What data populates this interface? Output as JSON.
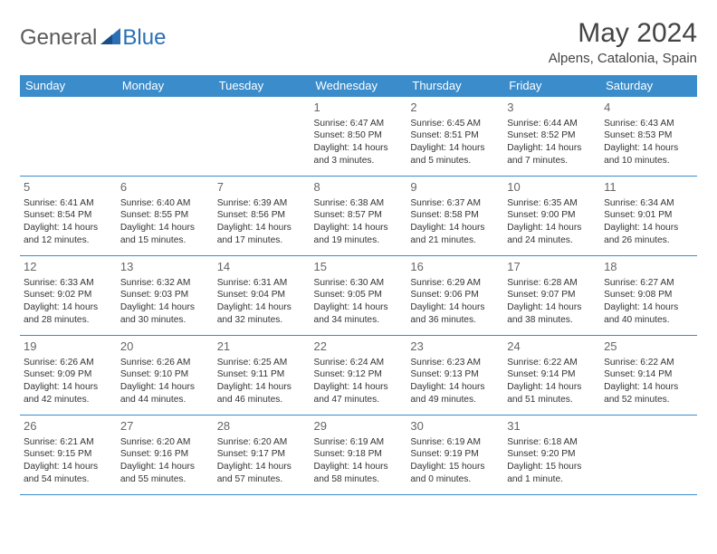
{
  "brand": {
    "part1": "General",
    "part2": "Blue"
  },
  "title": "May 2024",
  "location": "Alpens, Catalonia, Spain",
  "colors": {
    "header_bg": "#3b8ccb",
    "header_text": "#ffffff",
    "border": "#3b8ccb",
    "brand_blue": "#2b6fb5"
  },
  "day_headers": [
    "Sunday",
    "Monday",
    "Tuesday",
    "Wednesday",
    "Thursday",
    "Friday",
    "Saturday"
  ],
  "weeks": [
    [
      null,
      null,
      null,
      {
        "n": "1",
        "sr": "Sunrise: 6:47 AM",
        "ss": "Sunset: 8:50 PM",
        "d1": "Daylight: 14 hours",
        "d2": "and 3 minutes."
      },
      {
        "n": "2",
        "sr": "Sunrise: 6:45 AM",
        "ss": "Sunset: 8:51 PM",
        "d1": "Daylight: 14 hours",
        "d2": "and 5 minutes."
      },
      {
        "n": "3",
        "sr": "Sunrise: 6:44 AM",
        "ss": "Sunset: 8:52 PM",
        "d1": "Daylight: 14 hours",
        "d2": "and 7 minutes."
      },
      {
        "n": "4",
        "sr": "Sunrise: 6:43 AM",
        "ss": "Sunset: 8:53 PM",
        "d1": "Daylight: 14 hours",
        "d2": "and 10 minutes."
      }
    ],
    [
      {
        "n": "5",
        "sr": "Sunrise: 6:41 AM",
        "ss": "Sunset: 8:54 PM",
        "d1": "Daylight: 14 hours",
        "d2": "and 12 minutes."
      },
      {
        "n": "6",
        "sr": "Sunrise: 6:40 AM",
        "ss": "Sunset: 8:55 PM",
        "d1": "Daylight: 14 hours",
        "d2": "and 15 minutes."
      },
      {
        "n": "7",
        "sr": "Sunrise: 6:39 AM",
        "ss": "Sunset: 8:56 PM",
        "d1": "Daylight: 14 hours",
        "d2": "and 17 minutes."
      },
      {
        "n": "8",
        "sr": "Sunrise: 6:38 AM",
        "ss": "Sunset: 8:57 PM",
        "d1": "Daylight: 14 hours",
        "d2": "and 19 minutes."
      },
      {
        "n": "9",
        "sr": "Sunrise: 6:37 AM",
        "ss": "Sunset: 8:58 PM",
        "d1": "Daylight: 14 hours",
        "d2": "and 21 minutes."
      },
      {
        "n": "10",
        "sr": "Sunrise: 6:35 AM",
        "ss": "Sunset: 9:00 PM",
        "d1": "Daylight: 14 hours",
        "d2": "and 24 minutes."
      },
      {
        "n": "11",
        "sr": "Sunrise: 6:34 AM",
        "ss": "Sunset: 9:01 PM",
        "d1": "Daylight: 14 hours",
        "d2": "and 26 minutes."
      }
    ],
    [
      {
        "n": "12",
        "sr": "Sunrise: 6:33 AM",
        "ss": "Sunset: 9:02 PM",
        "d1": "Daylight: 14 hours",
        "d2": "and 28 minutes."
      },
      {
        "n": "13",
        "sr": "Sunrise: 6:32 AM",
        "ss": "Sunset: 9:03 PM",
        "d1": "Daylight: 14 hours",
        "d2": "and 30 minutes."
      },
      {
        "n": "14",
        "sr": "Sunrise: 6:31 AM",
        "ss": "Sunset: 9:04 PM",
        "d1": "Daylight: 14 hours",
        "d2": "and 32 minutes."
      },
      {
        "n": "15",
        "sr": "Sunrise: 6:30 AM",
        "ss": "Sunset: 9:05 PM",
        "d1": "Daylight: 14 hours",
        "d2": "and 34 minutes."
      },
      {
        "n": "16",
        "sr": "Sunrise: 6:29 AM",
        "ss": "Sunset: 9:06 PM",
        "d1": "Daylight: 14 hours",
        "d2": "and 36 minutes."
      },
      {
        "n": "17",
        "sr": "Sunrise: 6:28 AM",
        "ss": "Sunset: 9:07 PM",
        "d1": "Daylight: 14 hours",
        "d2": "and 38 minutes."
      },
      {
        "n": "18",
        "sr": "Sunrise: 6:27 AM",
        "ss": "Sunset: 9:08 PM",
        "d1": "Daylight: 14 hours",
        "d2": "and 40 minutes."
      }
    ],
    [
      {
        "n": "19",
        "sr": "Sunrise: 6:26 AM",
        "ss": "Sunset: 9:09 PM",
        "d1": "Daylight: 14 hours",
        "d2": "and 42 minutes."
      },
      {
        "n": "20",
        "sr": "Sunrise: 6:26 AM",
        "ss": "Sunset: 9:10 PM",
        "d1": "Daylight: 14 hours",
        "d2": "and 44 minutes."
      },
      {
        "n": "21",
        "sr": "Sunrise: 6:25 AM",
        "ss": "Sunset: 9:11 PM",
        "d1": "Daylight: 14 hours",
        "d2": "and 46 minutes."
      },
      {
        "n": "22",
        "sr": "Sunrise: 6:24 AM",
        "ss": "Sunset: 9:12 PM",
        "d1": "Daylight: 14 hours",
        "d2": "and 47 minutes."
      },
      {
        "n": "23",
        "sr": "Sunrise: 6:23 AM",
        "ss": "Sunset: 9:13 PM",
        "d1": "Daylight: 14 hours",
        "d2": "and 49 minutes."
      },
      {
        "n": "24",
        "sr": "Sunrise: 6:22 AM",
        "ss": "Sunset: 9:14 PM",
        "d1": "Daylight: 14 hours",
        "d2": "and 51 minutes."
      },
      {
        "n": "25",
        "sr": "Sunrise: 6:22 AM",
        "ss": "Sunset: 9:14 PM",
        "d1": "Daylight: 14 hours",
        "d2": "and 52 minutes."
      }
    ],
    [
      {
        "n": "26",
        "sr": "Sunrise: 6:21 AM",
        "ss": "Sunset: 9:15 PM",
        "d1": "Daylight: 14 hours",
        "d2": "and 54 minutes."
      },
      {
        "n": "27",
        "sr": "Sunrise: 6:20 AM",
        "ss": "Sunset: 9:16 PM",
        "d1": "Daylight: 14 hours",
        "d2": "and 55 minutes."
      },
      {
        "n": "28",
        "sr": "Sunrise: 6:20 AM",
        "ss": "Sunset: 9:17 PM",
        "d1": "Daylight: 14 hours",
        "d2": "and 57 minutes."
      },
      {
        "n": "29",
        "sr": "Sunrise: 6:19 AM",
        "ss": "Sunset: 9:18 PM",
        "d1": "Daylight: 14 hours",
        "d2": "and 58 minutes."
      },
      {
        "n": "30",
        "sr": "Sunrise: 6:19 AM",
        "ss": "Sunset: 9:19 PM",
        "d1": "Daylight: 15 hours",
        "d2": "and 0 minutes."
      },
      {
        "n": "31",
        "sr": "Sunrise: 6:18 AM",
        "ss": "Sunset: 9:20 PM",
        "d1": "Daylight: 15 hours",
        "d2": "and 1 minute."
      },
      null
    ]
  ]
}
